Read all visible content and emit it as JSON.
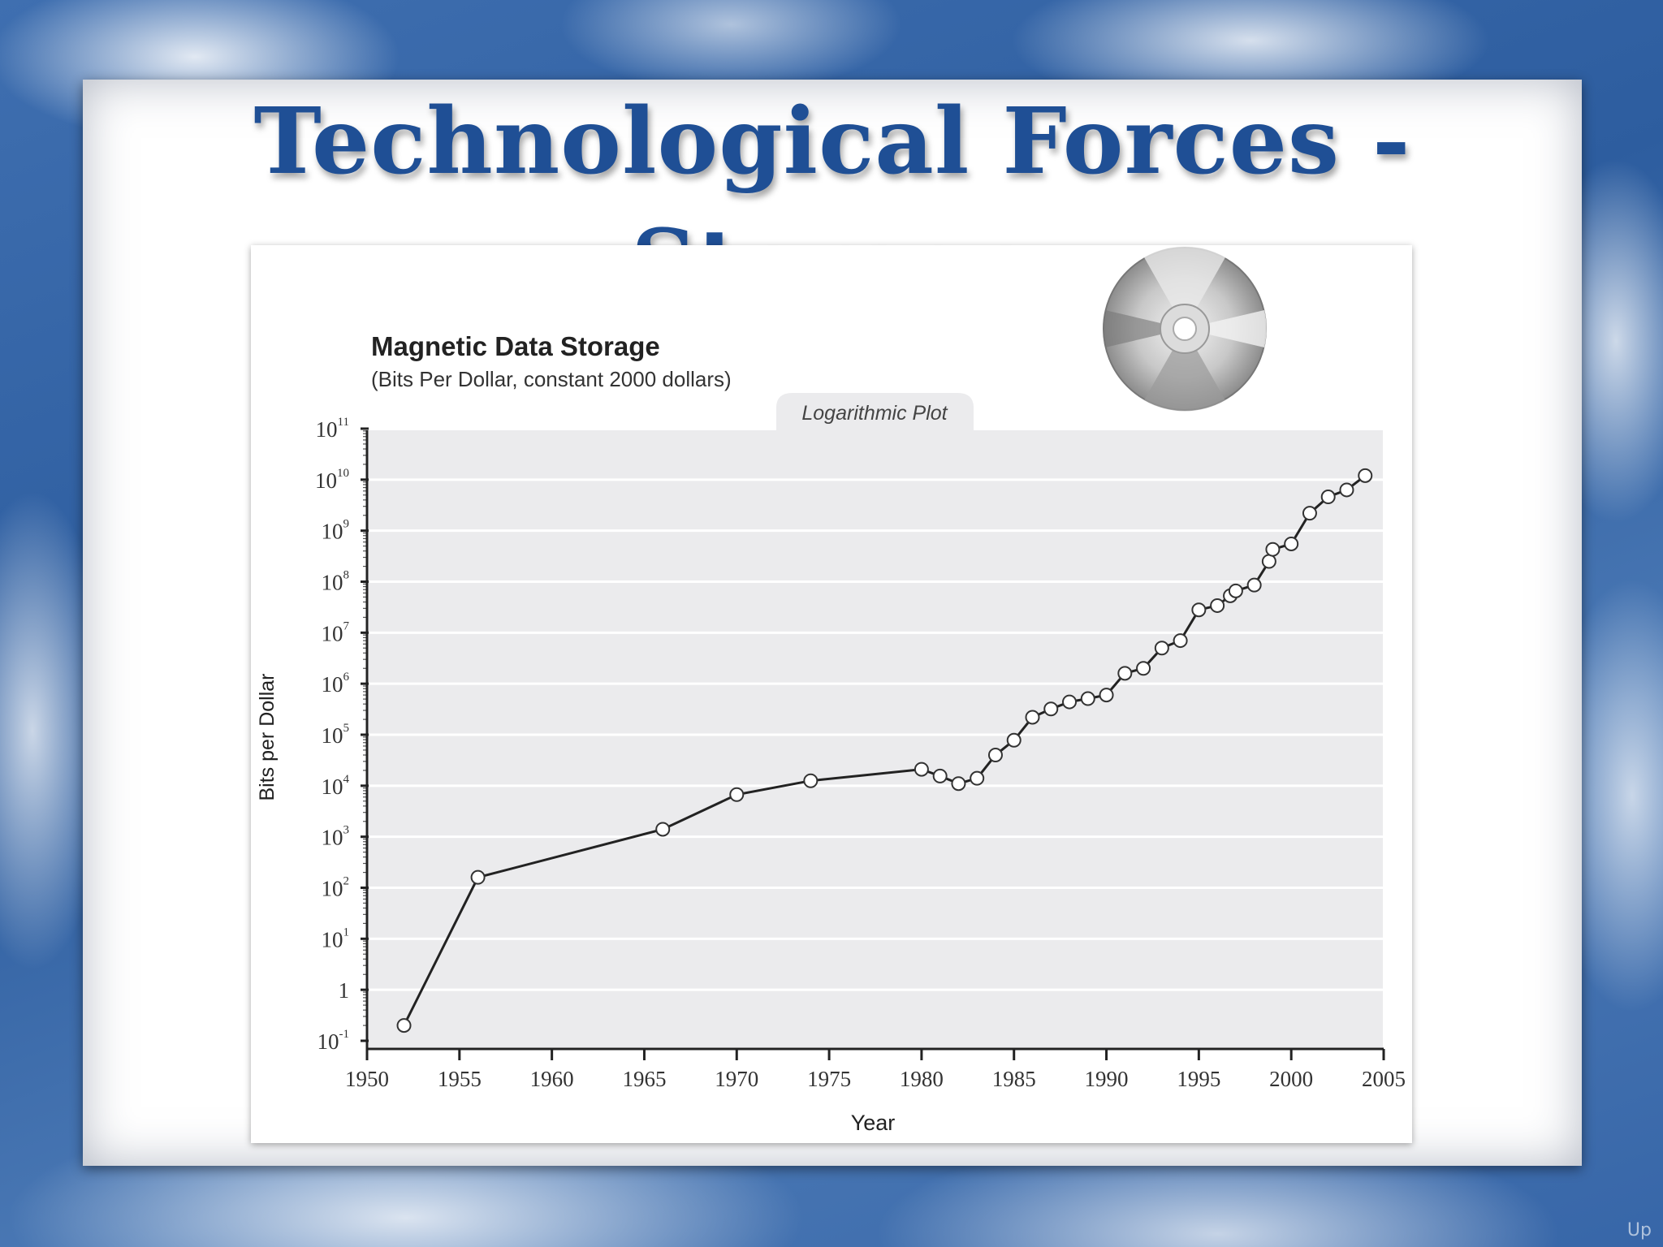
{
  "slide": {
    "title": "Technological Forces - Storage",
    "nav_label": "Up"
  },
  "chart_data": {
    "type": "line",
    "title": "Magnetic Data Storage",
    "subtitle": "(Bits Per Dollar, constant 2000 dollars)",
    "annotation": "Logarithmic Plot",
    "xlabel": "Year",
    "ylabel": "Bits per Dollar",
    "xlim": [
      1950,
      2005
    ],
    "ylim": [
      0.1,
      100000000000
    ],
    "yscale": "log",
    "grid": true,
    "legend": "none",
    "xticks": [
      1950,
      1955,
      1960,
      1965,
      1970,
      1975,
      1980,
      1985,
      1990,
      1995,
      2000,
      2005
    ],
    "yticks": [
      {
        "base": "10",
        "exp": "-1",
        "value": 0.1
      },
      {
        "base": "1",
        "exp": "",
        "value": 1
      },
      {
        "base": "10",
        "exp": "1",
        "value": 10
      },
      {
        "base": "10",
        "exp": "2",
        "value": 100
      },
      {
        "base": "10",
        "exp": "3",
        "value": 1000
      },
      {
        "base": "10",
        "exp": "4",
        "value": 10000
      },
      {
        "base": "10",
        "exp": "5",
        "value": 100000
      },
      {
        "base": "10",
        "exp": "6",
        "value": 1000000
      },
      {
        "base": "10",
        "exp": "7",
        "value": 10000000
      },
      {
        "base": "10",
        "exp": "8",
        "value": 100000000
      },
      {
        "base": "10",
        "exp": "9",
        "value": 1000000000
      },
      {
        "base": "10",
        "exp": "10",
        "value": 10000000000
      },
      {
        "base": "10",
        "exp": "11",
        "value": 100000000000
      }
    ],
    "series": [
      {
        "points": [
          [
            1952,
            0.2
          ],
          [
            1956,
            160
          ],
          [
            1966,
            1400
          ],
          [
            1970,
            6700
          ],
          [
            1974,
            12500
          ],
          [
            1980,
            21000
          ],
          [
            1981,
            15500
          ],
          [
            1982,
            11000
          ],
          [
            1983,
            14000
          ],
          [
            1984,
            40000
          ],
          [
            1985,
            78000
          ],
          [
            1986,
            220000
          ],
          [
            1987,
            320000
          ],
          [
            1988,
            440000
          ],
          [
            1989,
            510000
          ],
          [
            1990,
            600000
          ],
          [
            1991,
            1600000
          ],
          [
            1992,
            2000000
          ],
          [
            1993,
            5000000
          ],
          [
            1994,
            7000000
          ],
          [
            1995,
            28000000
          ],
          [
            1996,
            34000000
          ],
          [
            1996.7,
            53000000
          ],
          [
            1997,
            66000000
          ],
          [
            1998,
            86000000
          ],
          [
            1998.8,
            250000000
          ],
          [
            1999,
            430000000
          ],
          [
            2000,
            550000000
          ],
          [
            2001,
            2200000000
          ],
          [
            2002,
            4600000000
          ],
          [
            2003,
            6300000000
          ],
          [
            2004,
            12000000000
          ]
        ]
      }
    ],
    "colors": {
      "plot_bg": "#ebebed",
      "grid": "#ffffff",
      "line": "#222222",
      "marker_fill": "#ffffff",
      "title_blue": "#1f4f95"
    }
  },
  "icons": {
    "disc": "cd-icon"
  }
}
